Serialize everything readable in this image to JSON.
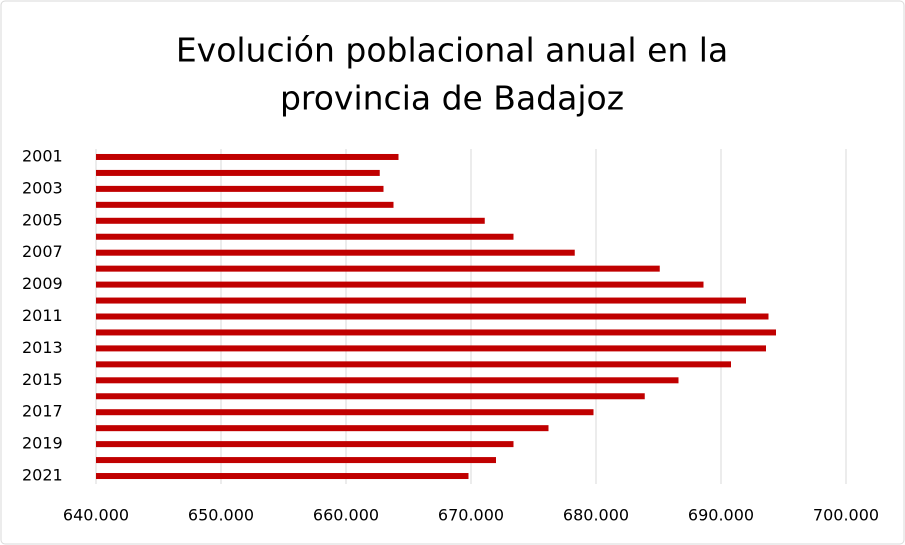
{
  "chart_data": {
    "type": "bar",
    "orientation": "horizontal",
    "title": [
      "Evolución poblacional anual en la",
      "provincia de Badajoz"
    ],
    "categories": [
      "2001",
      null,
      "2003",
      null,
      "2005",
      null,
      "2007",
      null,
      "2009",
      null,
      "2011",
      null,
      "2013",
      null,
      "2015",
      null,
      "2017",
      null,
      "2019",
      null,
      "2021"
    ],
    "values": [
      664200,
      662700,
      663000,
      663800,
      671100,
      673400,
      678300,
      685100,
      688600,
      692000,
      693800,
      694400,
      693600,
      690800,
      686600,
      683900,
      679800,
      676200,
      673400,
      672000,
      669800
    ],
    "color": "#c00000",
    "xlim": [
      640000,
      700000
    ],
    "xticks": [
      {
        "value": 640000,
        "label": "640.000"
      },
      {
        "value": 650000,
        "label": "650.000"
      },
      {
        "value": 660000,
        "label": "660.000"
      },
      {
        "value": 670000,
        "label": "670.000"
      },
      {
        "value": 680000,
        "label": "680.000"
      },
      {
        "value": 690000,
        "label": "690.000"
      },
      {
        "value": 700000,
        "label": "700.000"
      }
    ],
    "grid": true
  }
}
